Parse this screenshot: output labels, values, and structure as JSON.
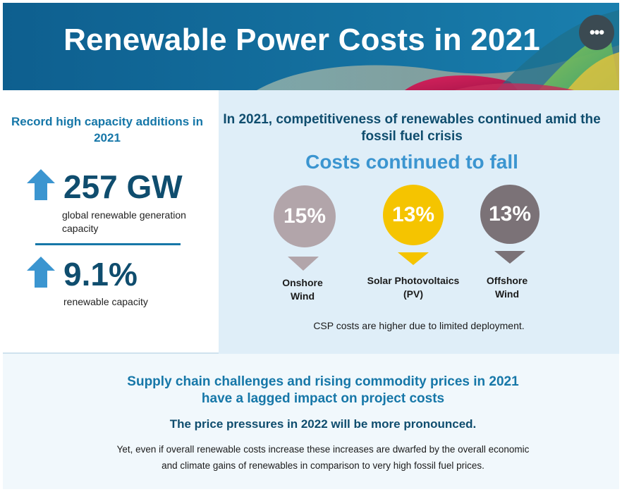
{
  "header": {
    "title": "Renewable Power Costs in 2021",
    "menu_glyph": "•••"
  },
  "left": {
    "heading": "Record high capacity additions in 2021",
    "stats": [
      {
        "value": "257 GW",
        "caption": "global renewable generation capacity",
        "icon": "arrow-up-icon"
      },
      {
        "value": "9.1%",
        "caption": "renewable capacity",
        "icon": "arrow-up-icon"
      }
    ]
  },
  "right": {
    "heading": "In 2021, competitiveness of renewables continued amid the fossil fuel crisis",
    "subheading": "Costs continued to fall",
    "technologies": [
      {
        "percent": "15%",
        "label": "Onshore Wind",
        "color": "#b2a5aa",
        "icon": "arrow-down-icon"
      },
      {
        "percent": "13%",
        "label": "Solar Photovoltaics (PV)",
        "color": "#f5c400",
        "icon": "arrow-down-icon"
      },
      {
        "percent": "13%",
        "label": "Offshore Wind",
        "color": "#7b7277",
        "icon": "arrow-down-icon"
      }
    ],
    "note": "CSP costs are higher due to limited deployment."
  },
  "bottom": {
    "heading": "Supply chain challenges and rising commodity prices in 2021 have a lagged impact on project costs",
    "subheading": "The price pressures in 2022 will be more pronounced.",
    "body": "Yet, even if overall renewable costs increase these increases are dwarfed by the overall economic and climate gains of renewables in comparison to very high fossil fuel prices."
  },
  "colors": {
    "header_bg": "#14709f",
    "accent_blue": "#1677a8",
    "dark_navy": "#0f4d6e",
    "light_panel": "#dfeef8",
    "arrow_blue": "#3b95d0"
  }
}
